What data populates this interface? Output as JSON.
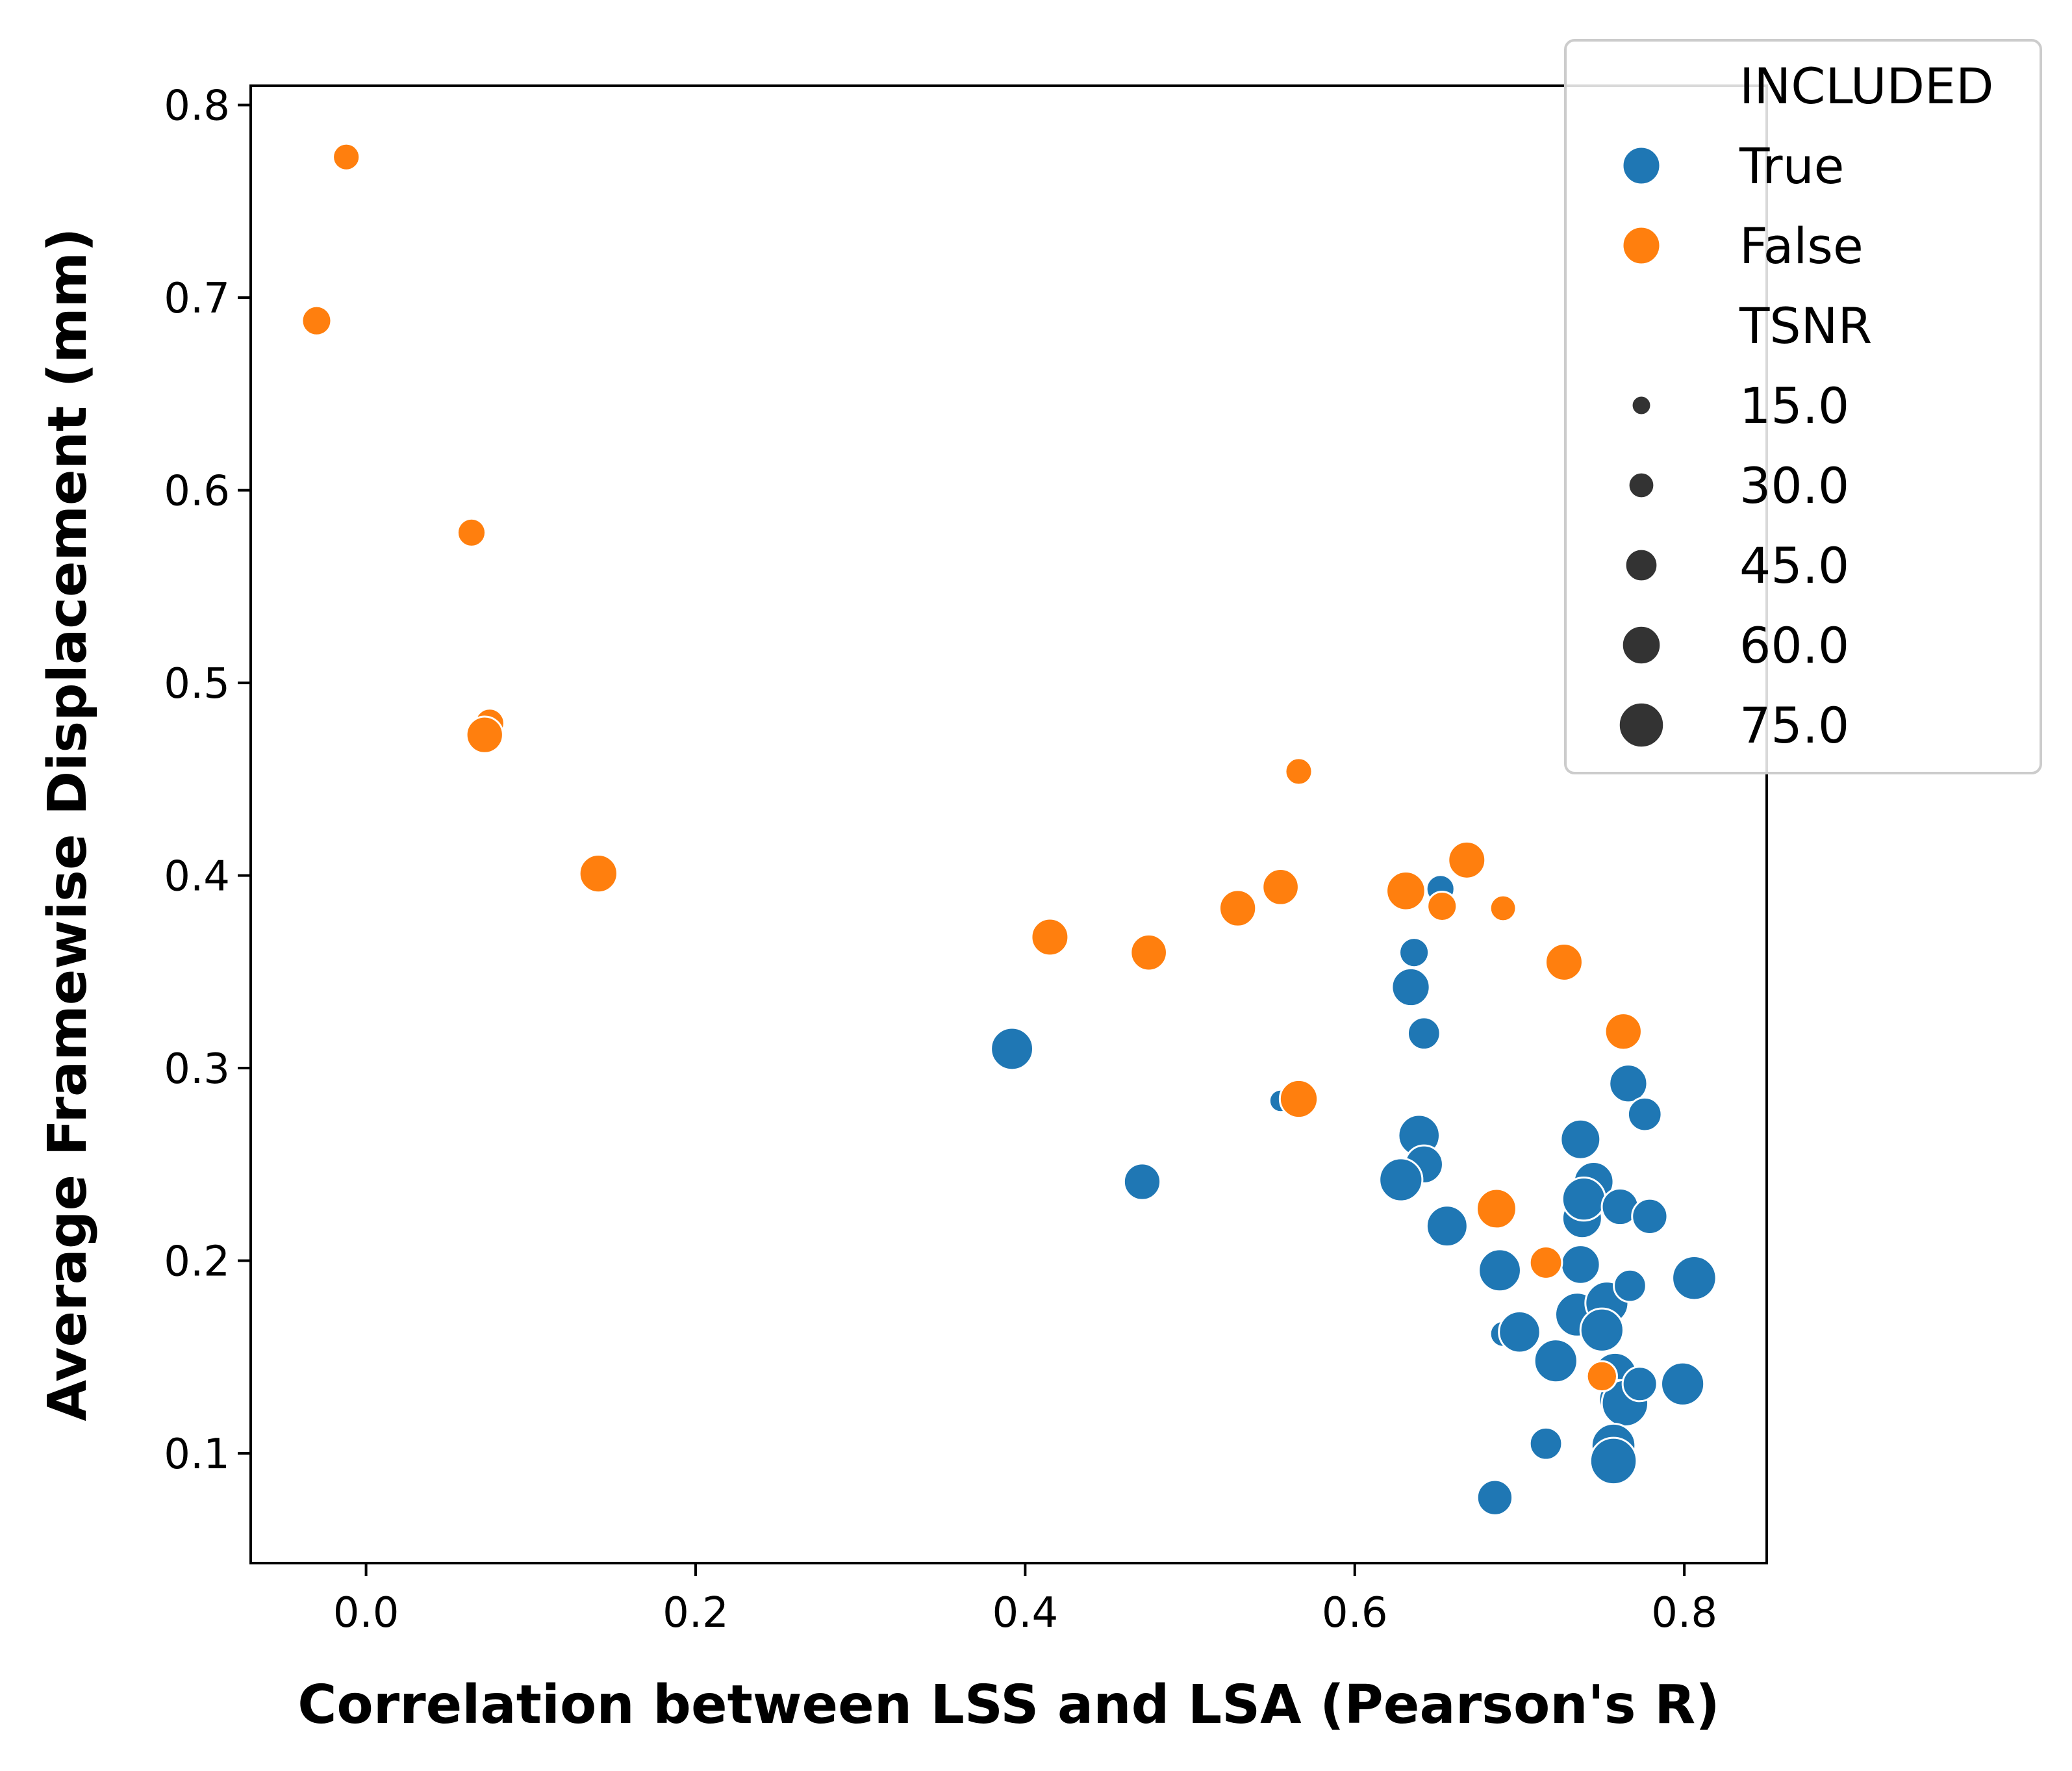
{
  "chart_data": {
    "type": "scatter",
    "xlabel": "Correlation between LSS and LSA (Pearson's R)",
    "ylabel": "Average Framewise Displacement (mm)",
    "xlim": [
      -0.07,
      0.85
    ],
    "ylim": [
      0.043,
      0.81
    ],
    "xticks": [
      0.0,
      0.2,
      0.4,
      0.6,
      0.8
    ],
    "xtick_labels": [
      "0.0",
      "0.2",
      "0.4",
      "0.6",
      "0.8"
    ],
    "yticks": [
      0.1,
      0.2,
      0.3,
      0.4,
      0.5,
      0.6,
      0.7,
      0.8
    ],
    "ytick_labels": [
      "0.1",
      "0.2",
      "0.3",
      "0.4",
      "0.5",
      "0.6",
      "0.7",
      "0.8"
    ],
    "grid": false,
    "legend": {
      "placement": "top-right",
      "hue_title": "INCLUDED",
      "hue_entries": [
        {
          "label": "True",
          "color": "#1f77b4"
        },
        {
          "label": "False",
          "color": "#ff7f0e"
        }
      ],
      "size_title": "TSNR",
      "size_entries": [
        {
          "label": "15.0",
          "tsnr": 15
        },
        {
          "label": "30.0",
          "tsnr": 30
        },
        {
          "label": "45.0",
          "tsnr": 45
        },
        {
          "label": "60.0",
          "tsnr": 60
        },
        {
          "label": "75.0",
          "tsnr": 75
        }
      ]
    },
    "size_encoding": {
      "field": "TSNR",
      "color": "#333333"
    },
    "series": [
      {
        "name": "True",
        "color": "#1f77b4",
        "points": [
          {
            "x": 0.392,
            "y": 0.31,
            "tsnr": 68
          },
          {
            "x": 0.471,
            "y": 0.241,
            "tsnr": 55
          },
          {
            "x": 0.555,
            "y": 0.283,
            "tsnr": 22
          },
          {
            "x": 0.652,
            "y": 0.393,
            "tsnr": 35
          },
          {
            "x": 0.636,
            "y": 0.36,
            "tsnr": 38
          },
          {
            "x": 0.634,
            "y": 0.342,
            "tsnr": 58
          },
          {
            "x": 0.642,
            "y": 0.318,
            "tsnr": 45
          },
          {
            "x": 0.639,
            "y": 0.265,
            "tsnr": 66
          },
          {
            "x": 0.642,
            "y": 0.25,
            "tsnr": 58
          },
          {
            "x": 0.628,
            "y": 0.242,
            "tsnr": 70
          },
          {
            "x": 0.656,
            "y": 0.218,
            "tsnr": 65
          },
          {
            "x": 0.688,
            "y": 0.195,
            "tsnr": 68
          },
          {
            "x": 0.69,
            "y": 0.162,
            "tsnr": 30
          },
          {
            "x": 0.7,
            "y": 0.163,
            "tsnr": 66
          },
          {
            "x": 0.722,
            "y": 0.148,
            "tsnr": 70
          },
          {
            "x": 0.716,
            "y": 0.105,
            "tsnr": 45
          },
          {
            "x": 0.685,
            "y": 0.077,
            "tsnr": 52
          },
          {
            "x": 0.737,
            "y": 0.263,
            "tsnr": 62
          },
          {
            "x": 0.745,
            "y": 0.241,
            "tsnr": 62
          },
          {
            "x": 0.738,
            "y": 0.222,
            "tsnr": 62
          },
          {
            "x": 0.739,
            "y": 0.232,
            "tsnr": 70
          },
          {
            "x": 0.737,
            "y": 0.198,
            "tsnr": 60
          },
          {
            "x": 0.735,
            "y": 0.172,
            "tsnr": 72
          },
          {
            "x": 0.753,
            "y": 0.178,
            "tsnr": 70
          },
          {
            "x": 0.75,
            "y": 0.164,
            "tsnr": 70
          },
          {
            "x": 0.758,
            "y": 0.141,
            "tsnr": 70
          },
          {
            "x": 0.76,
            "y": 0.128,
            "tsnr": 60
          },
          {
            "x": 0.764,
            "y": 0.126,
            "tsnr": 78
          },
          {
            "x": 0.757,
            "y": 0.104,
            "tsnr": 72
          },
          {
            "x": 0.757,
            "y": 0.096,
            "tsnr": 78
          },
          {
            "x": 0.766,
            "y": 0.292,
            "tsnr": 58
          },
          {
            "x": 0.776,
            "y": 0.276,
            "tsnr": 48
          },
          {
            "x": 0.761,
            "y": 0.228,
            "tsnr": 55
          },
          {
            "x": 0.779,
            "y": 0.223,
            "tsnr": 52
          },
          {
            "x": 0.767,
            "y": 0.187,
            "tsnr": 45
          },
          {
            "x": 0.773,
            "y": 0.136,
            "tsnr": 50
          },
          {
            "x": 0.806,
            "y": 0.191,
            "tsnr": 72
          },
          {
            "x": 0.799,
            "y": 0.136,
            "tsnr": 70
          }
        ]
      },
      {
        "name": "False",
        "color": "#ff7f0e",
        "points": [
          {
            "x": -0.012,
            "y": 0.773,
            "tsnr": 32
          },
          {
            "x": -0.03,
            "y": 0.688,
            "tsnr": 38
          },
          {
            "x": 0.064,
            "y": 0.578,
            "tsnr": 35
          },
          {
            "x": 0.075,
            "y": 0.479,
            "tsnr": 38
          },
          {
            "x": 0.072,
            "y": 0.473,
            "tsnr": 55
          },
          {
            "x": 0.141,
            "y": 0.401,
            "tsnr": 58
          },
          {
            "x": 0.415,
            "y": 0.368,
            "tsnr": 56
          },
          {
            "x": 0.475,
            "y": 0.36,
            "tsnr": 54
          },
          {
            "x": 0.529,
            "y": 0.383,
            "tsnr": 55
          },
          {
            "x": 0.555,
            "y": 0.394,
            "tsnr": 54
          },
          {
            "x": 0.566,
            "y": 0.454,
            "tsnr": 32
          },
          {
            "x": 0.566,
            "y": 0.284,
            "tsnr": 58
          },
          {
            "x": 0.631,
            "y": 0.392,
            "tsnr": 60
          },
          {
            "x": 0.653,
            "y": 0.384,
            "tsnr": 38
          },
          {
            "x": 0.668,
            "y": 0.408,
            "tsnr": 56
          },
          {
            "x": 0.69,
            "y": 0.383,
            "tsnr": 30
          },
          {
            "x": 0.727,
            "y": 0.355,
            "tsnr": 56
          },
          {
            "x": 0.763,
            "y": 0.319,
            "tsnr": 55
          },
          {
            "x": 0.686,
            "y": 0.227,
            "tsnr": 62
          },
          {
            "x": 0.716,
            "y": 0.199,
            "tsnr": 45
          },
          {
            "x": 0.75,
            "y": 0.14,
            "tsnr": 40
          }
        ]
      }
    ]
  }
}
